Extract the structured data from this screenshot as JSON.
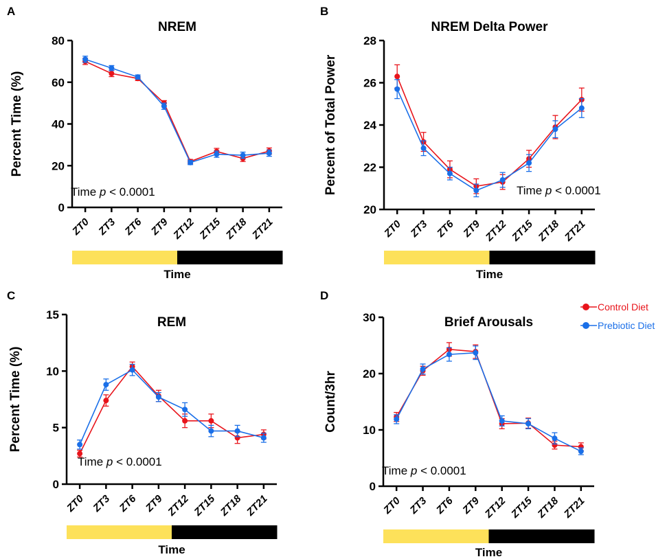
{
  "colors": {
    "control": "#e8141b",
    "prebiotic": "#1a6fe8",
    "light_bar": "#fde15a",
    "dark_bar": "#000000"
  },
  "legend": [
    {
      "name": "Control Diet",
      "color": "#e8141b"
    },
    {
      "name": "Prebiotic Diet",
      "color": "#1a6fe8"
    }
  ],
  "chart_data": [
    {
      "panel": "A",
      "type": "line",
      "title": "NREM",
      "xlabel": "Time",
      "ylabel": "Percent Time (%)",
      "categories": [
        "ZT0",
        "ZT3",
        "ZT6",
        "ZT9",
        "ZT12",
        "ZT15",
        "ZT18",
        "ZT21"
      ],
      "ylim": [
        0,
        80
      ],
      "yticks": [
        0,
        20,
        40,
        60,
        80
      ],
      "annotation_prefix": "Time",
      "annotation_p": "p",
      "annotation_suffix": "< 0.0001",
      "light_dark": [
        "light",
        "light",
        "light",
        "light",
        "dark",
        "dark",
        "dark",
        "dark"
      ],
      "series": [
        {
          "name": "Control Diet",
          "values": [
            70,
            64.2,
            61.8,
            50,
            22,
            26.8,
            23.5,
            27
          ],
          "error": [
            1.5,
            1.5,
            1.0,
            1.2,
            1.0,
            1.5,
            1.5,
            1.5
          ]
        },
        {
          "name": "Prebiotic Diet",
          "values": [
            71,
            66.8,
            62.5,
            48.5,
            21.5,
            25.5,
            25,
            26
          ],
          "error": [
            1.5,
            1.2,
            1.0,
            1.5,
            1.0,
            1.5,
            1.5,
            1.5
          ]
        }
      ]
    },
    {
      "panel": "B",
      "type": "line",
      "title": "NREM Delta Power",
      "xlabel": "Time",
      "ylabel": "Percent of Total Power",
      "categories": [
        "ZT0",
        "ZT3",
        "ZT6",
        "ZT9",
        "ZT12",
        "ZT15",
        "ZT18",
        "ZT21"
      ],
      "ylim": [
        20,
        28
      ],
      "yticks": [
        20,
        22,
        24,
        26,
        28
      ],
      "annotation_prefix": "Time",
      "annotation_p": "p",
      "annotation_suffix": "< 0.0001",
      "light_dark": [
        "light",
        "light",
        "light",
        "light",
        "dark",
        "dark",
        "dark",
        "dark"
      ],
      "series": [
        {
          "name": "Control Diet",
          "values": [
            26.3,
            23.2,
            21.9,
            21.1,
            21.3,
            22.4,
            23.9,
            25.2
          ],
          "error": [
            0.55,
            0.45,
            0.4,
            0.35,
            0.35,
            0.4,
            0.55,
            0.55
          ]
        },
        {
          "name": "Prebiotic Diet",
          "values": [
            25.7,
            22.9,
            21.7,
            20.9,
            21.4,
            22.2,
            23.8,
            24.8
          ],
          "error": [
            0.45,
            0.35,
            0.3,
            0.3,
            0.35,
            0.4,
            0.4,
            0.45
          ]
        }
      ]
    },
    {
      "panel": "C",
      "type": "line",
      "title": "REM",
      "xlabel": "Time",
      "ylabel": "Percent Time (%)",
      "categories": [
        "ZT0",
        "ZT3",
        "ZT6",
        "ZT9",
        "ZT12",
        "ZT15",
        "ZT18",
        "ZT21"
      ],
      "ylim": [
        0,
        15
      ],
      "yticks": [
        0,
        5,
        10,
        15
      ],
      "annotation_prefix": "Time",
      "annotation_p": "p",
      "annotation_suffix": "< 0.0001",
      "light_dark": [
        "light",
        "light",
        "light",
        "light",
        "dark",
        "dark",
        "dark",
        "dark"
      ],
      "series": [
        {
          "name": "Control Diet",
          "values": [
            2.7,
            7.4,
            10.4,
            7.8,
            5.6,
            5.6,
            4.1,
            4.4
          ],
          "error": [
            0.3,
            0.5,
            0.4,
            0.5,
            0.6,
            0.6,
            0.5,
            0.4
          ]
        },
        {
          "name": "Prebiotic Diet",
          "values": [
            3.5,
            8.8,
            10.1,
            7.7,
            6.6,
            4.7,
            4.7,
            4.1
          ],
          "error": [
            0.4,
            0.5,
            0.5,
            0.4,
            0.6,
            0.5,
            0.5,
            0.4
          ]
        }
      ]
    },
    {
      "panel": "D",
      "type": "line",
      "title": "Brief Arousals",
      "xlabel": "Time",
      "ylabel": "Count/3hr",
      "categories": [
        "ZT0",
        "ZT3",
        "ZT6",
        "ZT9",
        "ZT12",
        "ZT15",
        "ZT18",
        "ZT21"
      ],
      "ylim": [
        0,
        30
      ],
      "yticks": [
        0,
        10,
        20,
        30
      ],
      "annotation_prefix": "Time",
      "annotation_p": "p",
      "annotation_suffix": "< 0.0001",
      "light_dark": [
        "light",
        "light",
        "light",
        "light",
        "dark",
        "dark",
        "dark",
        "dark"
      ],
      "series": [
        {
          "name": "Control Diet",
          "values": [
            12.3,
            20.5,
            24.3,
            23.9,
            11.1,
            11.2,
            7.3,
            7.0
          ],
          "error": [
            0.8,
            0.8,
            1.2,
            1.2,
            0.9,
            0.9,
            0.7,
            0.7
          ]
        },
        {
          "name": "Prebiotic Diet",
          "values": [
            11.9,
            20.8,
            23.4,
            23.7,
            11.6,
            11.1,
            8.5,
            6.2
          ],
          "error": [
            0.8,
            0.9,
            1.2,
            1.2,
            0.9,
            0.9,
            1.0,
            0.6
          ]
        }
      ]
    }
  ]
}
